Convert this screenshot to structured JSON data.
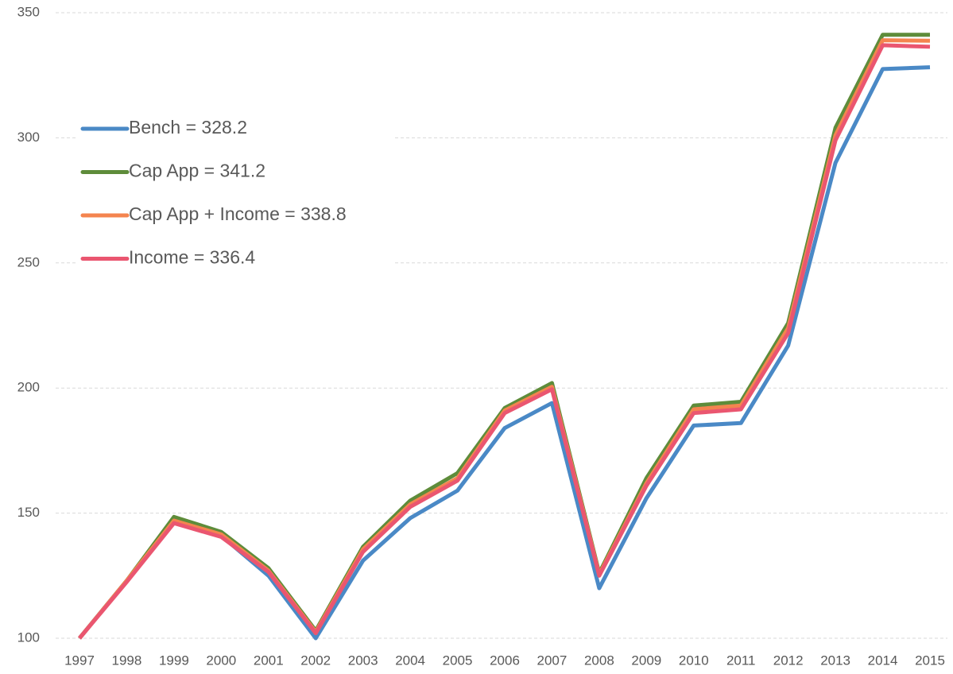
{
  "chart_data": {
    "type": "line",
    "categories": [
      "1997",
      "1998",
      "1999",
      "2000",
      "2001",
      "2002",
      "2003",
      "2004",
      "2005",
      "2006",
      "2007",
      "2008",
      "2009",
      "2010",
      "2011",
      "2012",
      "2013",
      "2014",
      "2015"
    ],
    "series": [
      {
        "name": "Bench = 328.2",
        "color": "#4a89c6",
        "values": [
          100,
          123,
          147,
          141,
          125,
          100,
          131,
          148,
          159,
          184,
          194,
          120,
          156,
          185,
          186,
          217,
          290,
          327.5,
          328.2
        ]
      },
      {
        "name": "Cap App = 341.2",
        "color": "#5e8c3a",
        "values": [
          100,
          123,
          148.5,
          142.5,
          128,
          103,
          136.5,
          155,
          166,
          192,
          202,
          126,
          164,
          193,
          194.5,
          226,
          304,
          341.2,
          341.2
        ]
      },
      {
        "name": "Cap App + Income = 338.8",
        "color": "#f4844f",
        "values": [
          100,
          123,
          147,
          141.5,
          127,
          102.5,
          135.5,
          153.5,
          164,
          191,
          200.5,
          125.5,
          162,
          191.5,
          193,
          224,
          301,
          339,
          338.8
        ]
      },
      {
        "name": "Income = 336.4",
        "color": "#ea5670",
        "values": [
          100,
          122.5,
          146,
          140.5,
          126.5,
          102,
          134.5,
          152.5,
          163,
          190,
          199.5,
          125,
          161,
          190,
          191.5,
          222,
          299,
          337,
          336.4
        ]
      }
    ],
    "ylim": [
      100,
      350
    ],
    "yticks": [
      100,
      150,
      200,
      250,
      300,
      350
    ],
    "grid": true,
    "legend": "left"
  }
}
